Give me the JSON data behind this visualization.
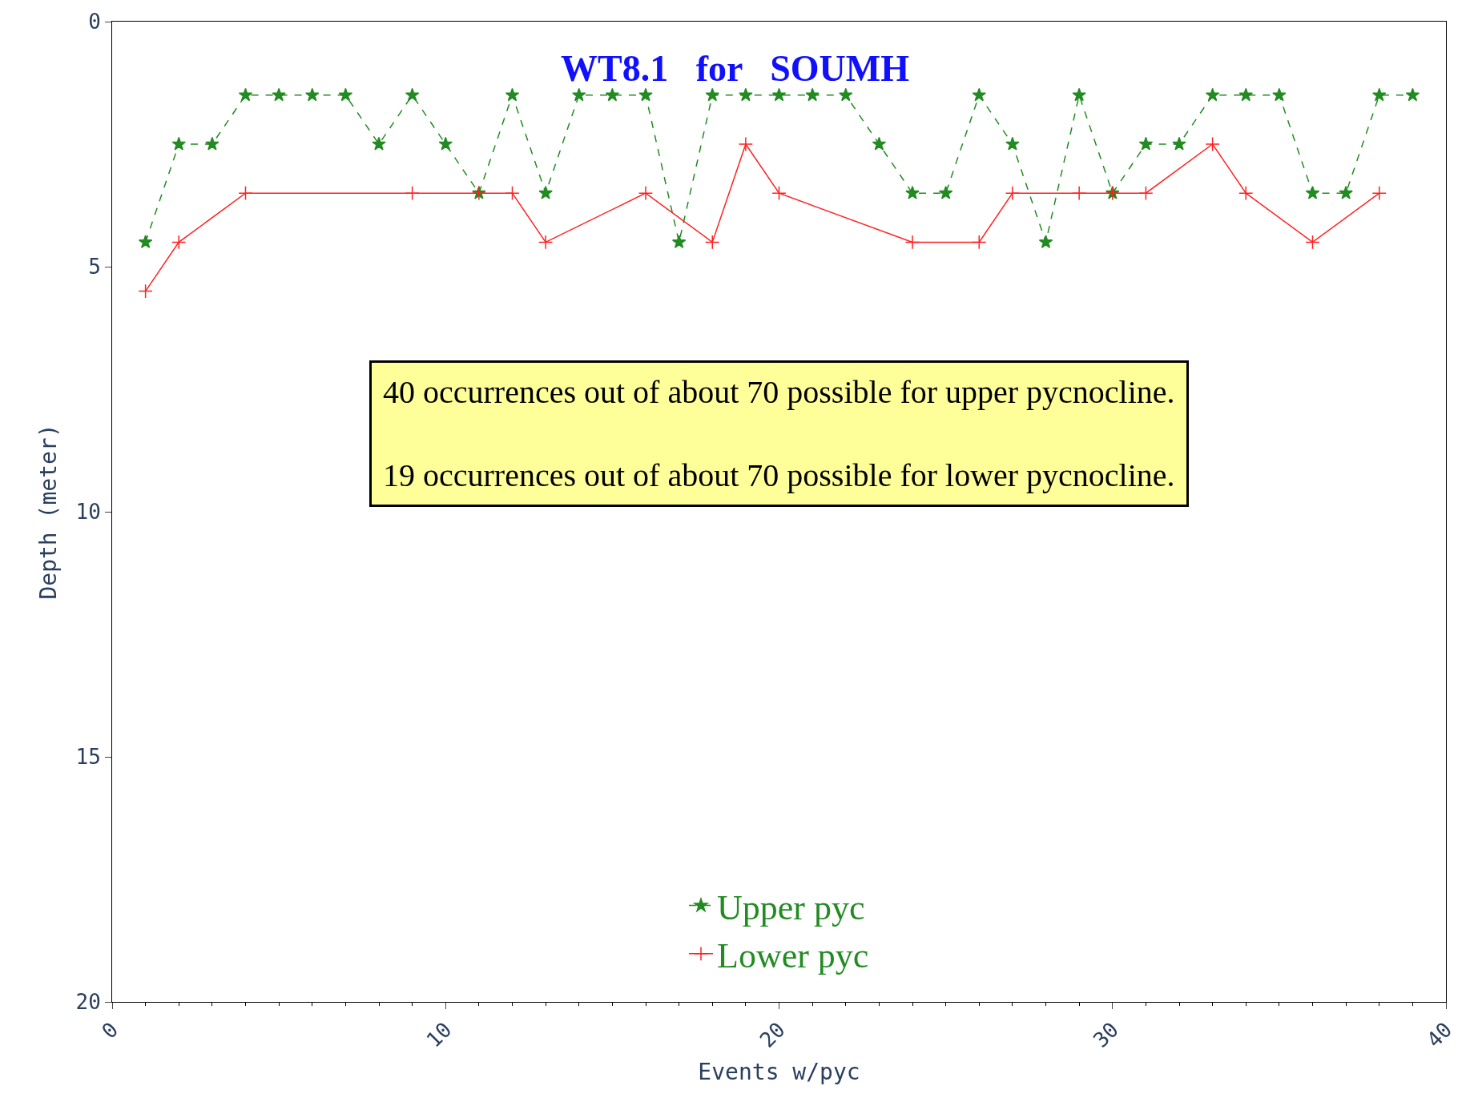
{
  "chart_data": {
    "type": "line",
    "title": "WT8.1   for   SOUMH",
    "xlabel": "Events w/pyc",
    "ylabel": "Depth (meter)",
    "xlim": [
      0,
      40
    ],
    "xticks": [
      0,
      10,
      20,
      30,
      40
    ],
    "ylim": [
      20,
      0
    ],
    "yticks": [
      0,
      5,
      10,
      15,
      20
    ],
    "legend": "bottom",
    "series": [
      {
        "name": "Upper pyc",
        "color": "#228b22",
        "marker": "star",
        "line_style": "dashed",
        "x": [
          1,
          2,
          3,
          4,
          5,
          6,
          7,
          8,
          9,
          10,
          11,
          12,
          13,
          14,
          15,
          16,
          17,
          18,
          19,
          20,
          21,
          22,
          23,
          24,
          25,
          26,
          27,
          28,
          29,
          30,
          31,
          32,
          33,
          34,
          35,
          36,
          37,
          38,
          39
        ],
        "values": [
          4.5,
          2.5,
          2.5,
          1.5,
          1.5,
          1.5,
          1.5,
          2.5,
          1.5,
          2.5,
          3.5,
          1.5,
          3.5,
          1.5,
          1.5,
          1.5,
          4.5,
          1.5,
          1.5,
          1.5,
          1.5,
          1.5,
          2.5,
          3.5,
          3.5,
          1.5,
          2.5,
          4.5,
          1.5,
          3.5,
          2.5,
          2.5,
          1.5,
          1.5,
          1.5,
          3.5,
          3.5,
          1.5,
          1.5
        ]
      },
      {
        "name": "Lower pyc",
        "color": "#ff2020",
        "marker": "cross",
        "line_style": "solid",
        "x": [
          1,
          2,
          4,
          9,
          11,
          12,
          13,
          16,
          18,
          19,
          20,
          24,
          26,
          27,
          29,
          30,
          31,
          33,
          34,
          36,
          38
        ],
        "values": [
          5.5,
          4.5,
          3.5,
          3.5,
          3.5,
          3.5,
          4.5,
          3.5,
          4.5,
          2.5,
          3.5,
          4.5,
          4.5,
          3.5,
          3.5,
          3.5,
          3.5,
          2.5,
          3.5,
          4.5,
          3.5
        ]
      }
    ],
    "annotations": [
      "40 occurrences out of about 70 possible for upper pycnocline.",
      "19 occurrences out of about 70 possible for lower pycnocline."
    ]
  }
}
